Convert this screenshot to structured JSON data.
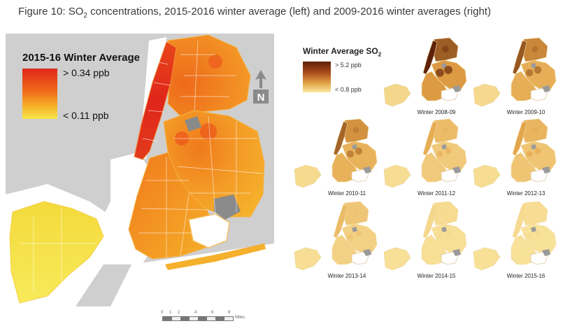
{
  "figure": {
    "caption_prefix": "Figure 10:  SO",
    "caption_sub": "2",
    "caption_rest": " concentrations, 2015-2016 winter average (left) and 2009-2016 winter averages (right)"
  },
  "left_map": {
    "legend_title": "2015-16 Winter Average",
    "legend_high": "> 0.34 ppb",
    "legend_low": "< 0.11 ppb",
    "north_label": "N",
    "scale_ticks": [
      "0",
      "1",
      "2",
      "4",
      "6",
      "8"
    ],
    "scale_unit": "Miles",
    "colors": {
      "high": "#e0261a",
      "mid": "#f6a52a",
      "low": "#f7e84a",
      "background": "#cfcfcf",
      "water": "#ffffff"
    }
  },
  "right_panel": {
    "legend_title_prefix": "Winter Average SO",
    "legend_title_sub": "2",
    "legend_high": "> 5.2 ppb",
    "legend_low": "< 0.8 ppb",
    "colors": {
      "high": "#5e2108",
      "low": "#fbe9a2"
    },
    "winters": [
      {
        "label": "Winter 2008-09",
        "intensity": 0.95
      },
      {
        "label": "Winter 2009-10",
        "intensity": 0.75
      },
      {
        "label": "Winter 2010-11",
        "intensity": 0.7
      },
      {
        "label": "Winter 2011-12",
        "intensity": 0.4
      },
      {
        "label": "Winter 2012-13",
        "intensity": 0.45
      },
      {
        "label": "Winter 2013-14",
        "intensity": 0.3
      },
      {
        "label": "Winter 2014-15",
        "intensity": 0.12
      },
      {
        "label": "Winter 2015-16",
        "intensity": 0.1
      }
    ]
  }
}
